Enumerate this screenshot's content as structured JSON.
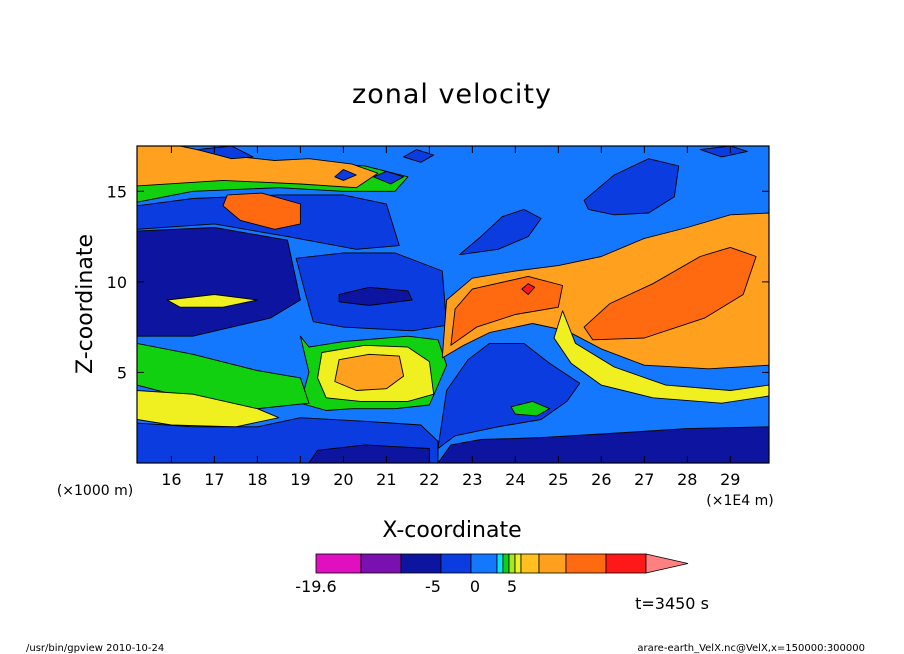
{
  "chart_data": {
    "type": "heatmap",
    "title": "zonal velocity",
    "xlabel": "X-coordinate",
    "ylabel": "Z-coordinate",
    "x_unit_label": "(×1E4 m)",
    "y_unit_label": "(×1000 m)",
    "xlim": [
      15.2,
      29.9
    ],
    "ylim": [
      0,
      17.5
    ],
    "x_ticks": [
      16,
      17,
      18,
      19,
      20,
      21,
      22,
      23,
      24,
      25,
      26,
      27,
      28,
      29
    ],
    "y_ticks": [
      5,
      10,
      15
    ],
    "colorbar": {
      "colors": [
        "#e010c0",
        "#7b10b0",
        "#0c14a0",
        "#0a3ce0",
        "#1478ff",
        "#00e6f0",
        "#10d010",
        "#a8e620",
        "#f0f020",
        "#ffc020",
        "#ffa01e",
        "#ff6a10",
        "#ff1818",
        "#ff8080"
      ],
      "labels": [
        "-19.6",
        "-5",
        "0",
        "5"
      ]
    },
    "regions": [
      {
        "level": "lt-15",
        "color": "#6e10a8",
        "points": [
          [
            25.0,
            0
          ],
          [
            29.9,
            0
          ],
          [
            29.9,
            0.9
          ],
          [
            28.5,
            1.2
          ],
          [
            27,
            1.1
          ],
          [
            25.4,
            0.9
          ]
        ]
      },
      {
        "level": "lt-15",
        "color": "#6e10a8",
        "points": [
          [
            22.4,
            2.2
          ],
          [
            22.6,
            2.6
          ],
          [
            22.55,
            3.4
          ],
          [
            22.4,
            3.0
          ]
        ]
      },
      {
        "level": "lt-15",
        "color": "#6e10a8",
        "points": [
          [
            20.0,
            9.2
          ],
          [
            21.4,
            9.4
          ],
          [
            21.4,
            9.0
          ],
          [
            20.0,
            8.7
          ]
        ]
      },
      {
        "level": "-5",
        "color": "#0a3ce0",
        "points": [
          [
            15.2,
            14.2
          ],
          [
            16.5,
            14.6
          ],
          [
            18.5,
            14.8
          ],
          [
            20.0,
            14.8
          ],
          [
            21.0,
            14.3
          ],
          [
            21.3,
            12.0
          ],
          [
            20.3,
            11.8
          ],
          [
            18.7,
            12.5
          ],
          [
            17.0,
            13.2
          ],
          [
            15.2,
            12.9
          ]
        ]
      },
      {
        "level": "-10",
        "color": "#0c14a0",
        "points": [
          [
            15.2,
            12.8
          ],
          [
            17.0,
            13.0
          ],
          [
            18.7,
            12.3
          ],
          [
            19.0,
            9.0
          ],
          [
            18.3,
            8.0
          ],
          [
            16.5,
            7.0
          ],
          [
            15.2,
            7.0
          ]
        ]
      },
      {
        "level": "0",
        "color": "#10d010",
        "points": [
          [
            15.2,
            16.2
          ],
          [
            17.0,
            16.5
          ],
          [
            19.0,
            16.6
          ],
          [
            20.5,
            16.4
          ],
          [
            21.5,
            15.8
          ],
          [
            21.2,
            15.0
          ],
          [
            20.0,
            15.0
          ],
          [
            18.5,
            15.2
          ],
          [
            16.5,
            15.0
          ],
          [
            15.2,
            14.4
          ]
        ]
      },
      {
        "level": "5",
        "color": "#ffa01e",
        "points": [
          [
            15.2,
            17.5
          ],
          [
            16.2,
            17.5
          ],
          [
            17.2,
            17.0
          ],
          [
            18.4,
            16.7
          ],
          [
            19.2,
            16.8
          ],
          [
            20.2,
            16.5
          ],
          [
            20.8,
            16.0
          ],
          [
            20.3,
            15.2
          ],
          [
            19.0,
            15.4
          ],
          [
            17.2,
            15.6
          ],
          [
            15.2,
            15.3
          ]
        ]
      },
      {
        "level": "10",
        "color": "#ff6a10",
        "points": [
          [
            17.3,
            14.8
          ],
          [
            18.1,
            14.9
          ],
          [
            19.0,
            14.3
          ],
          [
            19.0,
            13.2
          ],
          [
            18.4,
            12.9
          ],
          [
            17.6,
            13.4
          ],
          [
            17.2,
            14.2
          ]
        ]
      },
      {
        "level": "-5",
        "color": "#0a3ce0",
        "points": [
          [
            18.9,
            11.3
          ],
          [
            20.0,
            11.6
          ],
          [
            21.2,
            11.6
          ],
          [
            22.3,
            10.6
          ],
          [
            22.4,
            7.6
          ],
          [
            21.6,
            7.3
          ],
          [
            20.0,
            7.5
          ],
          [
            19.3,
            7.8
          ],
          [
            19.1,
            9.5
          ]
        ]
      },
      {
        "level": "-10",
        "color": "#0c14a0",
        "points": [
          [
            19.9,
            9.3
          ],
          [
            20.6,
            9.7
          ],
          [
            21.5,
            9.5
          ],
          [
            21.6,
            9.0
          ],
          [
            20.6,
            8.7
          ],
          [
            19.9,
            8.9
          ]
        ]
      },
      {
        "level": "0",
        "color": "#10d010",
        "points": [
          [
            19.0,
            7.0
          ],
          [
            19.2,
            6.4
          ],
          [
            20.0,
            6.7
          ],
          [
            21.5,
            7.0
          ],
          [
            22.2,
            6.8
          ],
          [
            22.4,
            5.4
          ],
          [
            22.0,
            3.2
          ],
          [
            21.2,
            3.0
          ],
          [
            20.2,
            3.0
          ],
          [
            19.6,
            2.9
          ],
          [
            19.0,
            3.3
          ],
          [
            19.2,
            5.0
          ]
        ]
      },
      {
        "level": "5",
        "color": "#f0f020",
        "points": [
          [
            19.5,
            6.1
          ],
          [
            20.5,
            6.5
          ],
          [
            21.5,
            6.4
          ],
          [
            22.0,
            5.6
          ],
          [
            22.1,
            3.8
          ],
          [
            21.5,
            3.4
          ],
          [
            20.4,
            3.4
          ],
          [
            19.6,
            3.6
          ],
          [
            19.4,
            4.7
          ]
        ]
      },
      {
        "level": "10",
        "color": "#ffa01e",
        "points": [
          [
            19.9,
            5.7
          ],
          [
            20.6,
            6.0
          ],
          [
            21.3,
            5.9
          ],
          [
            21.4,
            4.8
          ],
          [
            21.0,
            4.1
          ],
          [
            20.3,
            4.0
          ],
          [
            19.8,
            4.5
          ]
        ]
      },
      {
        "level": "0",
        "color": "#10d010",
        "points": [
          [
            15.2,
            6.6
          ],
          [
            16.5,
            6.0
          ],
          [
            18.0,
            5.1
          ],
          [
            19.0,
            4.7
          ],
          [
            19.2,
            3.3
          ],
          [
            18.0,
            3.0
          ],
          [
            17.0,
            3.2
          ],
          [
            15.2,
            4.3
          ]
        ]
      },
      {
        "level": "5",
        "color": "#f0f020",
        "points": [
          [
            15.2,
            4.0
          ],
          [
            16.5,
            3.8
          ],
          [
            18.0,
            3.0
          ],
          [
            18.5,
            2.5
          ],
          [
            17.5,
            2.0
          ],
          [
            16.0,
            2.1
          ],
          [
            15.2,
            2.4
          ]
        ]
      },
      {
        "level": "-5",
        "color": "#0a3ce0",
        "points": [
          [
            15.2,
            2.2
          ],
          [
            16.5,
            2.0
          ],
          [
            18.0,
            2.0
          ],
          [
            19.0,
            2.5
          ],
          [
            20.5,
            2.3
          ],
          [
            21.8,
            2.1
          ],
          [
            22.2,
            1.2
          ],
          [
            22.2,
            0
          ],
          [
            15.2,
            0
          ]
        ]
      },
      {
        "level": "-10",
        "color": "#0c14a0",
        "points": [
          [
            19.2,
            0
          ],
          [
            22.0,
            0
          ],
          [
            22.0,
            0.8
          ],
          [
            20.5,
            1.0
          ],
          [
            19.4,
            0.7
          ]
        ]
      },
      {
        "level": "10",
        "color": "#ffa01e",
        "points": [
          [
            22.3,
            5.8
          ],
          [
            22.4,
            9.0
          ],
          [
            23.0,
            10.2
          ],
          [
            24.0,
            10.6
          ],
          [
            25.0,
            10.9
          ],
          [
            26.0,
            11.4
          ],
          [
            27.0,
            12.4
          ],
          [
            28.0,
            13.0
          ],
          [
            29.0,
            13.7
          ],
          [
            29.9,
            13.8
          ],
          [
            29.9,
            5.4
          ],
          [
            28.5,
            5.2
          ],
          [
            27.0,
            5.4
          ],
          [
            26.0,
            6.3
          ],
          [
            25.2,
            7.3
          ],
          [
            24.4,
            7.7
          ],
          [
            23.4,
            7.2
          ],
          [
            22.8,
            6.5
          ]
        ]
      },
      {
        "level": "15",
        "color": "#ff6a10",
        "points": [
          [
            22.5,
            6.5
          ],
          [
            22.6,
            8.5
          ],
          [
            23.0,
            9.6
          ],
          [
            24.3,
            10.3
          ],
          [
            25.1,
            9.8
          ],
          [
            25.0,
            8.6
          ],
          [
            24.0,
            8.2
          ],
          [
            23.1,
            7.5
          ]
        ]
      },
      {
        "level": "15",
        "color": "#ff6a10",
        "points": [
          [
            25.6,
            7.5
          ],
          [
            26.2,
            8.8
          ],
          [
            27.2,
            9.9
          ],
          [
            28.3,
            11.4
          ],
          [
            29.0,
            11.9
          ],
          [
            29.6,
            11.4
          ],
          [
            29.3,
            9.3
          ],
          [
            28.4,
            8.0
          ],
          [
            27.0,
            6.9
          ],
          [
            25.8,
            6.8
          ]
        ]
      },
      {
        "level": "20",
        "color": "#ff1818",
        "points": [
          [
            24.15,
            9.6
          ],
          [
            24.3,
            9.9
          ],
          [
            24.45,
            9.7
          ],
          [
            24.3,
            9.3
          ]
        ]
      },
      {
        "level": "-5",
        "color": "#0a3ce0",
        "points": [
          [
            22.2,
            0.8
          ],
          [
            22.4,
            4.0
          ],
          [
            22.9,
            5.7
          ],
          [
            23.4,
            6.6
          ],
          [
            24.2,
            6.6
          ],
          [
            24.8,
            5.5
          ],
          [
            25.5,
            4.4
          ],
          [
            25.2,
            3.4
          ],
          [
            24.6,
            2.4
          ],
          [
            23.6,
            2.0
          ],
          [
            22.6,
            1.5
          ]
        ]
      },
      {
        "level": "-10",
        "color": "#0c14a0",
        "points": [
          [
            22.2,
            0
          ],
          [
            29.9,
            0
          ],
          [
            29.9,
            2.0
          ],
          [
            28.0,
            1.9
          ],
          [
            26.0,
            1.6
          ],
          [
            24.6,
            1.4
          ],
          [
            23.2,
            1.3
          ],
          [
            22.5,
            1.0
          ]
        ]
      },
      {
        "level": "0",
        "color": "#10d010",
        "points": [
          [
            23.9,
            3.1
          ],
          [
            24.4,
            3.4
          ],
          [
            24.8,
            3.0
          ],
          [
            24.5,
            2.6
          ],
          [
            24.0,
            2.7
          ]
        ]
      },
      {
        "level": "5",
        "color": "#f0f020",
        "points": [
          [
            25.1,
            8.4
          ],
          [
            25.4,
            6.6
          ],
          [
            26.3,
            5.3
          ],
          [
            27.5,
            4.3
          ],
          [
            29.0,
            4.0
          ],
          [
            29.9,
            4.3
          ],
          [
            29.9,
            3.7
          ],
          [
            28.8,
            3.3
          ],
          [
            27.2,
            3.6
          ],
          [
            26.0,
            4.3
          ],
          [
            25.3,
            5.5
          ],
          [
            24.9,
            6.9
          ]
        ]
      },
      {
        "level": "-5",
        "color": "#0a3ce0",
        "points": [
          [
            22.7,
            11.5
          ],
          [
            23.2,
            12.5
          ],
          [
            23.7,
            13.6
          ],
          [
            24.2,
            14.0
          ],
          [
            24.6,
            13.5
          ],
          [
            24.3,
            12.5
          ],
          [
            23.6,
            11.8
          ]
        ]
      },
      {
        "level": "-5",
        "color": "#0a3ce0",
        "points": [
          [
            25.6,
            14.5
          ],
          [
            26.3,
            15.9
          ],
          [
            27.1,
            16.8
          ],
          [
            27.8,
            16.4
          ],
          [
            27.7,
            14.7
          ],
          [
            27.1,
            13.8
          ],
          [
            26.3,
            13.7
          ],
          [
            25.7,
            14.0
          ]
        ]
      },
      {
        "level": "-5",
        "color": "#0a3ce0",
        "points": [
          [
            16.6,
            17.3
          ],
          [
            17.4,
            17.5
          ],
          [
            17.9,
            16.9
          ],
          [
            17.4,
            16.8
          ]
        ]
      },
      {
        "level": "-5",
        "color": "#0a3ce0",
        "points": [
          [
            19.8,
            15.8
          ],
          [
            20.0,
            16.2
          ],
          [
            20.3,
            15.9
          ],
          [
            20.0,
            15.6
          ]
        ]
      },
      {
        "level": "-5",
        "color": "#0a3ce0",
        "points": [
          [
            20.7,
            15.8
          ],
          [
            21.0,
            16.1
          ],
          [
            21.4,
            15.8
          ],
          [
            21.1,
            15.4
          ]
        ]
      },
      {
        "level": "-5",
        "color": "#0a3ce0",
        "points": [
          [
            21.4,
            16.9
          ],
          [
            21.7,
            17.3
          ],
          [
            22.1,
            17.0
          ],
          [
            21.8,
            16.6
          ]
        ]
      },
      {
        "level": "-5",
        "color": "#0a3ce0",
        "points": [
          [
            28.3,
            17.3
          ],
          [
            29.0,
            17.5
          ],
          [
            29.4,
            17.2
          ],
          [
            28.8,
            16.9
          ]
        ]
      },
      {
        "level": "5",
        "color": "#f0f020",
        "points": [
          [
            15.9,
            9.0
          ],
          [
            17.0,
            9.3
          ],
          [
            18.0,
            9.0
          ],
          [
            17.2,
            8.6
          ],
          [
            16.2,
            8.6
          ]
        ]
      }
    ]
  },
  "time_label": "t=3450 s",
  "footer": {
    "left": "/usr/bin/gpview   2010-10-24",
    "right": "arare-earth_VelX.nc@VelX,x=150000:300000"
  }
}
